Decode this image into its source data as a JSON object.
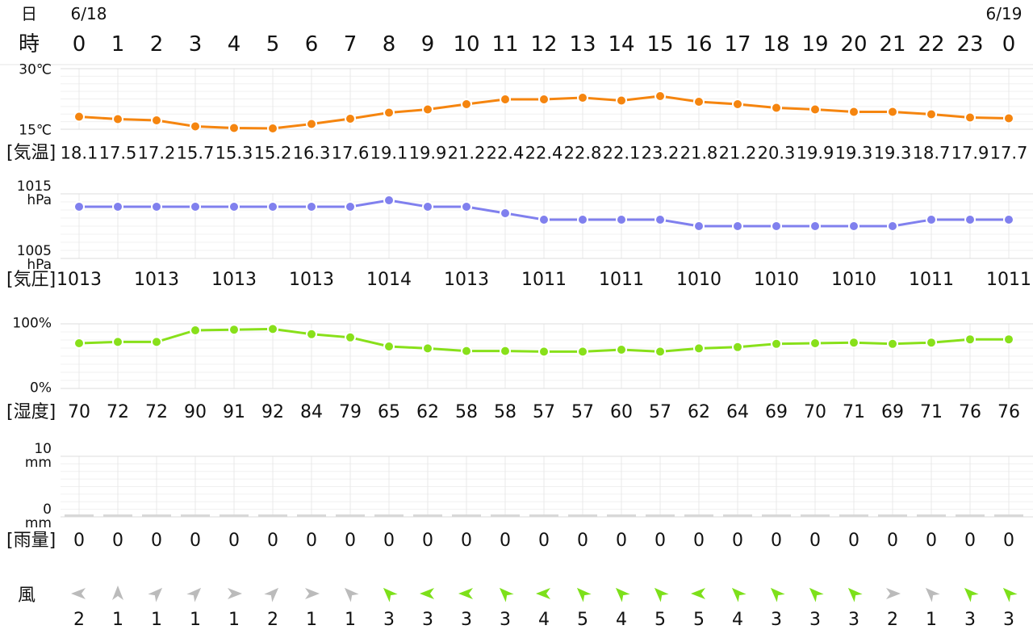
{
  "day_label": "日",
  "hour_label": "時",
  "dates": [
    "6/18",
    "6/19"
  ],
  "hours": [
    0,
    1,
    2,
    3,
    4,
    5,
    6,
    7,
    8,
    9,
    10,
    11,
    12,
    13,
    14,
    15,
    16,
    17,
    18,
    19,
    20,
    21,
    22,
    23,
    0
  ],
  "chart_data": [
    {
      "type": "line",
      "label": "[気温]",
      "color": "#f5850f",
      "values": [
        18.1,
        17.5,
        17.2,
        15.7,
        15.3,
        15.2,
        16.3,
        17.6,
        19.1,
        19.9,
        21.2,
        22.4,
        22.4,
        22.8,
        22.1,
        23.2,
        21.8,
        21.2,
        20.3,
        19.9,
        19.3,
        19.3,
        18.7,
        17.9,
        17.7
      ],
      "ylim": [
        15,
        30
      ],
      "yticks": [
        {
          "value": 30,
          "label": "30℃"
        },
        {
          "value": 15,
          "label": "15℃"
        }
      ]
    },
    {
      "type": "line",
      "label": "[気圧]",
      "color": "#8080ee",
      "values": [
        1013,
        1013,
        1013,
        1013,
        1013,
        1013,
        1013,
        1013,
        1014,
        1013,
        1013,
        1012,
        1011,
        1011,
        1011,
        1011,
        1010,
        1010,
        1010,
        1010,
        1010,
        1010,
        1011,
        1011,
        1011
      ],
      "ylim": [
        1005,
        1015
      ],
      "yticks": [
        {
          "value": 1015,
          "label": "1015\nhPa"
        },
        {
          "value": 1005,
          "label": "1005\nhPa"
        }
      ]
    },
    {
      "type": "line",
      "label": "[湿度]",
      "color": "#88e01a",
      "values": [
        70,
        72,
        72,
        90,
        91,
        92,
        84,
        79,
        65,
        62,
        58,
        58,
        57,
        57,
        60,
        57,
        62,
        64,
        69,
        70,
        71,
        69,
        71,
        76,
        76
      ],
      "ylim": [
        0,
        100
      ],
      "yticks": [
        {
          "value": 100,
          "label": "100%"
        },
        {
          "value": 0,
          "label": "0%"
        }
      ]
    },
    {
      "type": "bar",
      "label": "[雨量]",
      "color": "#d8d8d8",
      "values": [
        0,
        0,
        0,
        0,
        0,
        0,
        0,
        0,
        0,
        0,
        0,
        0,
        0,
        0,
        0,
        0,
        0,
        0,
        0,
        0,
        0,
        0,
        0,
        0,
        0
      ],
      "ylim": [
        0,
        10
      ],
      "yticks": [
        {
          "value": 10,
          "label": "10\nmm"
        },
        {
          "value": 0,
          "label": "0\nmm"
        }
      ]
    },
    {
      "type": "wind",
      "label": "風",
      "values": [
        2,
        1,
        1,
        1,
        1,
        2,
        1,
        1,
        3,
        3,
        3,
        3,
        4,
        5,
        4,
        5,
        5,
        4,
        3,
        3,
        3,
        2,
        1,
        3,
        3
      ],
      "directions": [
        270,
        0,
        45,
        45,
        90,
        45,
        90,
        315,
        315,
        270,
        270,
        315,
        270,
        315,
        315,
        315,
        270,
        315,
        315,
        315,
        315,
        90,
        315,
        315,
        315
      ],
      "colors": [
        "#bbbbbb",
        "#bbbbbb",
        "#bbbbbb",
        "#bbbbbb",
        "#bbbbbb",
        "#bbbbbb",
        "#bbbbbb",
        "#bbbbbb",
        "#7de01a",
        "#7de01a",
        "#7de01a",
        "#7de01a",
        "#7de01a",
        "#7de01a",
        "#7de01a",
        "#7de01a",
        "#7de01a",
        "#7de01a",
        "#7de01a",
        "#7de01a",
        "#7de01a",
        "#bbbbbb",
        "#bbbbbb",
        "#7de01a",
        "#7de01a"
      ]
    }
  ]
}
